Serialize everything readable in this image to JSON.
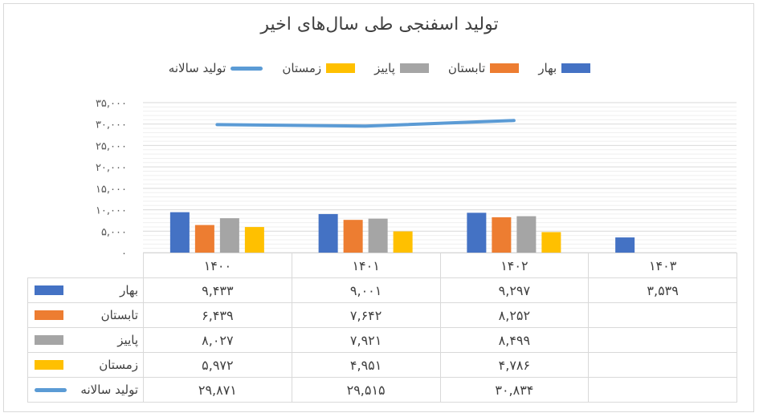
{
  "chart_data": {
    "type": "bar",
    "title": "تولید اسفنجی طی سال‌های اخیر",
    "categories": [
      "۱۴۰۰",
      "۱۴۰۱",
      "۱۴۰۲",
      "۱۴۰۳"
    ],
    "series": [
      {
        "name": "بهار",
        "color": "#4472c4",
        "kind": "bar",
        "values": [
          9433,
          9001,
          9297,
          3539
        ],
        "labels": [
          "۹,۴۳۳",
          "۹,۰۰۱",
          "۹,۲۹۷",
          "۳,۵۳۹"
        ]
      },
      {
        "name": "تابستان",
        "color": "#ed7d31",
        "kind": "bar",
        "values": [
          6439,
          7642,
          8252,
          null
        ],
        "labels": [
          "۶,۴۳۹",
          "۷,۶۴۲",
          "۸,۲۵۲",
          ""
        ]
      },
      {
        "name": "پاییز",
        "color": "#a5a5a5",
        "kind": "bar",
        "values": [
          8027,
          7921,
          8499,
          null
        ],
        "labels": [
          "۸,۰۲۷",
          "۷,۹۲۱",
          "۸,۴۹۹",
          ""
        ]
      },
      {
        "name": "زمستان",
        "color": "#ffc000",
        "kind": "bar",
        "values": [
          5972,
          4951,
          4786,
          null
        ],
        "labels": [
          "۵,۹۷۲",
          "۴,۹۵۱",
          "۴,۷۸۶",
          ""
        ]
      },
      {
        "name": "تولید سالانه",
        "color": "#5b9bd5",
        "kind": "line",
        "values": [
          29871,
          29515,
          30834,
          null
        ],
        "labels": [
          "۲۹,۸۷۱",
          "۲۹,۵۱۵",
          "۳۰,۸۳۴",
          ""
        ]
      }
    ],
    "ylim": [
      0,
      35000
    ],
    "yticks": [
      0,
      5000,
      10000,
      15000,
      20000,
      25000,
      30000,
      35000
    ],
    "ytick_labels": [
      "۰",
      "۵,۰۰۰",
      "۱۰,۰۰۰",
      "۱۵,۰۰۰",
      "۲۰,۰۰۰",
      "۲۵,۰۰۰",
      "۳۰,۰۰۰",
      "۳۵,۰۰۰"
    ],
    "legend": "top",
    "grid": true,
    "data_table": true
  }
}
